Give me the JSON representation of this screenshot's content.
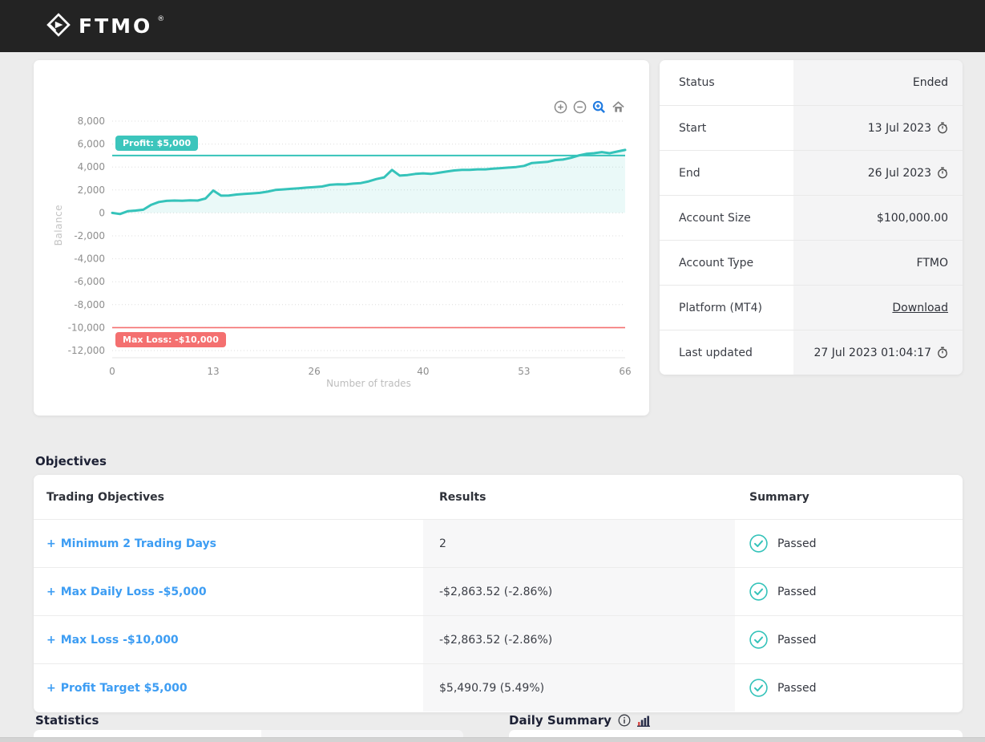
{
  "header": {
    "brand": "FTMO",
    "registered": "®"
  },
  "chart_data": {
    "type": "line",
    "title": "",
    "xlabel": "Number of trades",
    "ylabel": "Balance",
    "xlim": [
      0,
      66
    ],
    "ylim": [
      -12000,
      8000
    ],
    "grid": true,
    "legend": false,
    "xticks": [
      0,
      13,
      26,
      40,
      53,
      66
    ],
    "yticks": [
      {
        "value": 8000,
        "label": "8,000"
      },
      {
        "value": 6000,
        "label": "6,000"
      },
      {
        "value": 4000,
        "label": "4,000"
      },
      {
        "value": 2000,
        "label": "2,000"
      },
      {
        "value": 0,
        "label": "0"
      },
      {
        "value": -2000,
        "label": "-2,000"
      },
      {
        "value": -4000,
        "label": "-4,000"
      },
      {
        "value": -6000,
        "label": "-6,000"
      },
      {
        "value": -8000,
        "label": "-8,000"
      },
      {
        "value": -10000,
        "label": "-10,000"
      },
      {
        "value": -12000,
        "label": "-12,000"
      }
    ],
    "profit_line": {
      "value": 5000,
      "label": "Profit: $5,000",
      "color": "#35c3ba"
    },
    "max_loss_line": {
      "value": -10000,
      "label": "Max Loss: -$10,000",
      "color": "#f47070"
    },
    "line_color": "#35c3ba",
    "fill_color": "rgba(53,195,186,0.10)",
    "series": [
      {
        "name": "Balance",
        "values": [
          0,
          -100,
          150,
          200,
          280,
          700,
          950,
          1050,
          1080,
          1060,
          1100,
          1080,
          1250,
          1950,
          1500,
          1520,
          1600,
          1650,
          1700,
          1750,
          1850,
          2000,
          2050,
          2100,
          2150,
          2200,
          2250,
          2300,
          2450,
          2500,
          2480,
          2550,
          2600,
          2750,
          2950,
          3100,
          3750,
          3250,
          3300,
          3400,
          3450,
          3400,
          3500,
          3600,
          3700,
          3750,
          3750,
          3800,
          3800,
          3850,
          3900,
          3950,
          4000,
          4100,
          4350,
          4400,
          4450,
          4600,
          4650,
          4800,
          5000,
          5150,
          5200,
          5300,
          5200,
          5350,
          5490.79
        ]
      }
    ]
  },
  "account_info": {
    "rows": [
      {
        "label": "Status",
        "value": "Ended"
      },
      {
        "label": "Start",
        "value": "13 Jul 2023"
      },
      {
        "label": "End",
        "value": "26 Jul 2023"
      },
      {
        "label": "Account Size",
        "value": "$100,000.00"
      },
      {
        "label": "Account Type",
        "value": "FTMO"
      },
      {
        "label": "Platform (MT4)",
        "value": "Download"
      },
      {
        "label": "Last updated",
        "value": "27 Jul 2023 01:04:17"
      }
    ]
  },
  "objectives": {
    "heading": "Objectives",
    "expand_symbol": "+",
    "columns": [
      "Trading Objectives",
      "Results",
      "Summary"
    ],
    "rows": [
      {
        "objective": "Minimum 2 Trading Days",
        "result": "2",
        "summary": "Passed"
      },
      {
        "objective": "Max Daily Loss -$5,000",
        "result": "-$2,863.52 (-2.86%)",
        "summary": "Passed"
      },
      {
        "objective": "Max Loss -$10,000",
        "result": "-$2,863.52 (-2.86%)",
        "summary": "Passed"
      },
      {
        "objective": "Profit Target $5,000",
        "result": "$5,490.79 (5.49%)",
        "summary": "Passed"
      }
    ]
  },
  "footer": {
    "statistics_heading": "Statistics",
    "daily_summary_heading": "Daily Summary"
  },
  "colors": {
    "accent_teal": "#35c3ba",
    "loss_red": "#f47070",
    "link_blue": "#3d9df3",
    "header_bg": "#232323"
  }
}
